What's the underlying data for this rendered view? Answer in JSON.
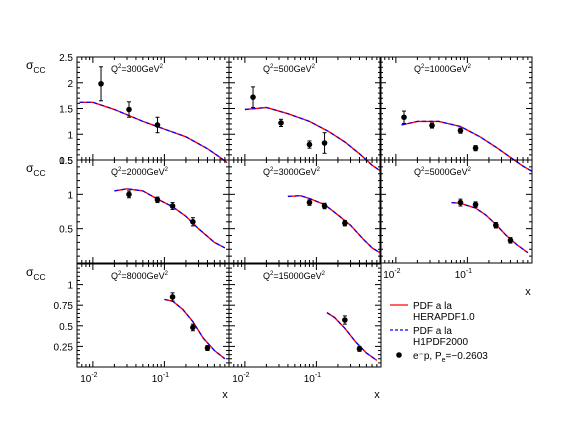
{
  "chart_data": {
    "type": "scatter",
    "x_scale": "log",
    "y_axis_label": {
      "base": "σ",
      "sub": "CC"
    },
    "x_axis_label": "x",
    "panels": [
      {
        "label": "Q²=300GeV²",
        "row": 0,
        "col": 0,
        "curve_x": [
          0.0065,
          0.01,
          0.02,
          0.05,
          0.1,
          0.2,
          0.4,
          0.6,
          0.75
        ],
        "curve_y": [
          1.62,
          1.62,
          1.48,
          1.25,
          1.1,
          0.95,
          0.72,
          0.55,
          0.45
        ],
        "points": [
          {
            "x": 0.013,
            "y": 1.98,
            "err": 0.33
          },
          {
            "x": 0.032,
            "y": 1.48,
            "err": 0.15
          },
          {
            "x": 0.08,
            "y": 1.18,
            "err": 0.15
          }
        ]
      },
      {
        "label": "Q²=500GeV²",
        "row": 0,
        "col": 1,
        "curve_x": [
          0.01,
          0.02,
          0.04,
          0.08,
          0.15,
          0.25,
          0.4,
          0.6,
          0.8
        ],
        "curve_y": [
          1.48,
          1.52,
          1.4,
          1.25,
          1.05,
          0.85,
          0.62,
          0.4,
          0.28
        ],
        "points": [
          {
            "x": 0.013,
            "y": 1.72,
            "err": 0.2
          },
          {
            "x": 0.032,
            "y": 1.22,
            "err": 0.07
          },
          {
            "x": 0.08,
            "y": 0.8,
            "err": 0.07
          },
          {
            "x": 0.13,
            "y": 0.83,
            "err": 0.2
          }
        ]
      },
      {
        "label": "Q²=1000GeV²",
        "row": 0,
        "col": 2,
        "curve_x": [
          0.012,
          0.02,
          0.04,
          0.08,
          0.15,
          0.25,
          0.4,
          0.6,
          0.8
        ],
        "curve_y": [
          1.18,
          1.25,
          1.25,
          1.15,
          0.95,
          0.75,
          0.55,
          0.38,
          0.28
        ],
        "points": [
          {
            "x": 0.013,
            "y": 1.33,
            "err": 0.12
          },
          {
            "x": 0.032,
            "y": 1.17,
            "err": 0.05
          },
          {
            "x": 0.08,
            "y": 1.07,
            "err": 0.05
          },
          {
            "x": 0.13,
            "y": 0.73,
            "err": 0.05
          }
        ]
      },
      {
        "label": "Q²=2000GeV²",
        "row": 1,
        "col": 0,
        "curve_x": [
          0.02,
          0.03,
          0.05,
          0.08,
          0.13,
          0.2,
          0.3,
          0.5,
          0.7
        ],
        "curve_y": [
          1.05,
          1.08,
          1.05,
          0.93,
          0.82,
          0.68,
          0.5,
          0.3,
          0.22
        ],
        "points": [
          {
            "x": 0.032,
            "y": 1.0,
            "err": 0.05
          },
          {
            "x": 0.08,
            "y": 0.92,
            "err": 0.04
          },
          {
            "x": 0.13,
            "y": 0.83,
            "err": 0.05
          },
          {
            "x": 0.25,
            "y": 0.6,
            "err": 0.06
          }
        ]
      },
      {
        "label": "Q²=3000GeV²",
        "row": 1,
        "col": 1,
        "curve_x": [
          0.04,
          0.06,
          0.08,
          0.13,
          0.2,
          0.3,
          0.45,
          0.6,
          0.8
        ],
        "curve_y": [
          0.97,
          0.98,
          0.94,
          0.85,
          0.7,
          0.55,
          0.35,
          0.22,
          0.14
        ],
        "points": [
          {
            "x": 0.08,
            "y": 0.88,
            "err": 0.04
          },
          {
            "x": 0.13,
            "y": 0.83,
            "err": 0.04
          },
          {
            "x": 0.25,
            "y": 0.58,
            "err": 0.04
          }
        ]
      },
      {
        "label": "Q²=5000GeV²",
        "row": 1,
        "col": 2,
        "curve_x": [
          0.06,
          0.08,
          0.13,
          0.18,
          0.25,
          0.35,
          0.5,
          0.7
        ],
        "curve_y": [
          0.88,
          0.87,
          0.8,
          0.7,
          0.56,
          0.4,
          0.26,
          0.15
        ],
        "points": [
          {
            "x": 0.08,
            "y": 0.88,
            "err": 0.05
          },
          {
            "x": 0.13,
            "y": 0.85,
            "err": 0.04
          },
          {
            "x": 0.25,
            "y": 0.55,
            "err": 0.04
          },
          {
            "x": 0.4,
            "y": 0.33,
            "err": 0.04
          }
        ]
      },
      {
        "label": "Q²=8000GeV²",
        "row": 2,
        "col": 0,
        "curve_x": [
          0.1,
          0.13,
          0.18,
          0.25,
          0.35,
          0.5,
          0.7
        ],
        "curve_y": [
          0.82,
          0.8,
          0.7,
          0.55,
          0.35,
          0.2,
          0.1
        ],
        "points": [
          {
            "x": 0.13,
            "y": 0.85,
            "err": 0.05
          },
          {
            "x": 0.25,
            "y": 0.48,
            "err": 0.04
          },
          {
            "x": 0.4,
            "y": 0.23,
            "err": 0.03
          }
        ]
      },
      {
        "label": "Q²=15000GeV²",
        "row": 2,
        "col": 1,
        "curve_x": [
          0.14,
          0.18,
          0.25,
          0.35,
          0.5,
          0.7
        ],
        "curve_y": [
          0.66,
          0.6,
          0.47,
          0.31,
          0.17,
          0.08
        ],
        "points": [
          {
            "x": 0.25,
            "y": 0.57,
            "err": 0.05
          },
          {
            "x": 0.4,
            "y": 0.22,
            "err": 0.03
          }
        ]
      }
    ],
    "row_y_ranges": [
      [
        0.5,
        2.5
      ],
      [
        0,
        1.5
      ],
      [
        0,
        1.25
      ]
    ],
    "row_y_ticks": [
      [
        {
          "v": 2.5,
          "t": "2.5"
        },
        {
          "v": 2,
          "t": "2"
        },
        {
          "v": 1.5,
          "t": "1.5"
        },
        {
          "v": 1,
          "t": "1"
        },
        {
          "v": 0.5,
          "t": "0.5"
        }
      ],
      [
        {
          "v": 1.5,
          "t": "1.5"
        },
        {
          "v": 1,
          "t": "1"
        },
        {
          "v": 0.5,
          "t": "0.5"
        }
      ],
      [
        {
          "v": 1,
          "t": "1"
        },
        {
          "v": 0.75,
          "t": "0.75"
        },
        {
          "v": 0.5,
          "t": "0.5"
        },
        {
          "v": 0.25,
          "t": "0.25"
        }
      ]
    ],
    "x_range": [
      0.006,
      0.8
    ],
    "x_tick_labels": [
      {
        "v": 0.01,
        "base": "10",
        "exp": "-2"
      },
      {
        "v": 0.1,
        "base": "10",
        "exp": "-1"
      }
    ],
    "legend": [
      {
        "text": [
          "PDF a la",
          "HERAPDF1.0"
        ],
        "color": "#ff0000",
        "style": "solid"
      },
      {
        "text": [
          "PDF a la",
          "H1PDF2000"
        ],
        "color": "#0000ff",
        "style": "dashed"
      },
      {
        "text": [
          "e⁻p, P",
          "e",
          "=−0.2603"
        ],
        "color": "#000000",
        "style": "marker"
      }
    ],
    "colors": {
      "herapdf": "#ff0000",
      "h1pdf": "#0000ff",
      "data": "#000000"
    }
  }
}
